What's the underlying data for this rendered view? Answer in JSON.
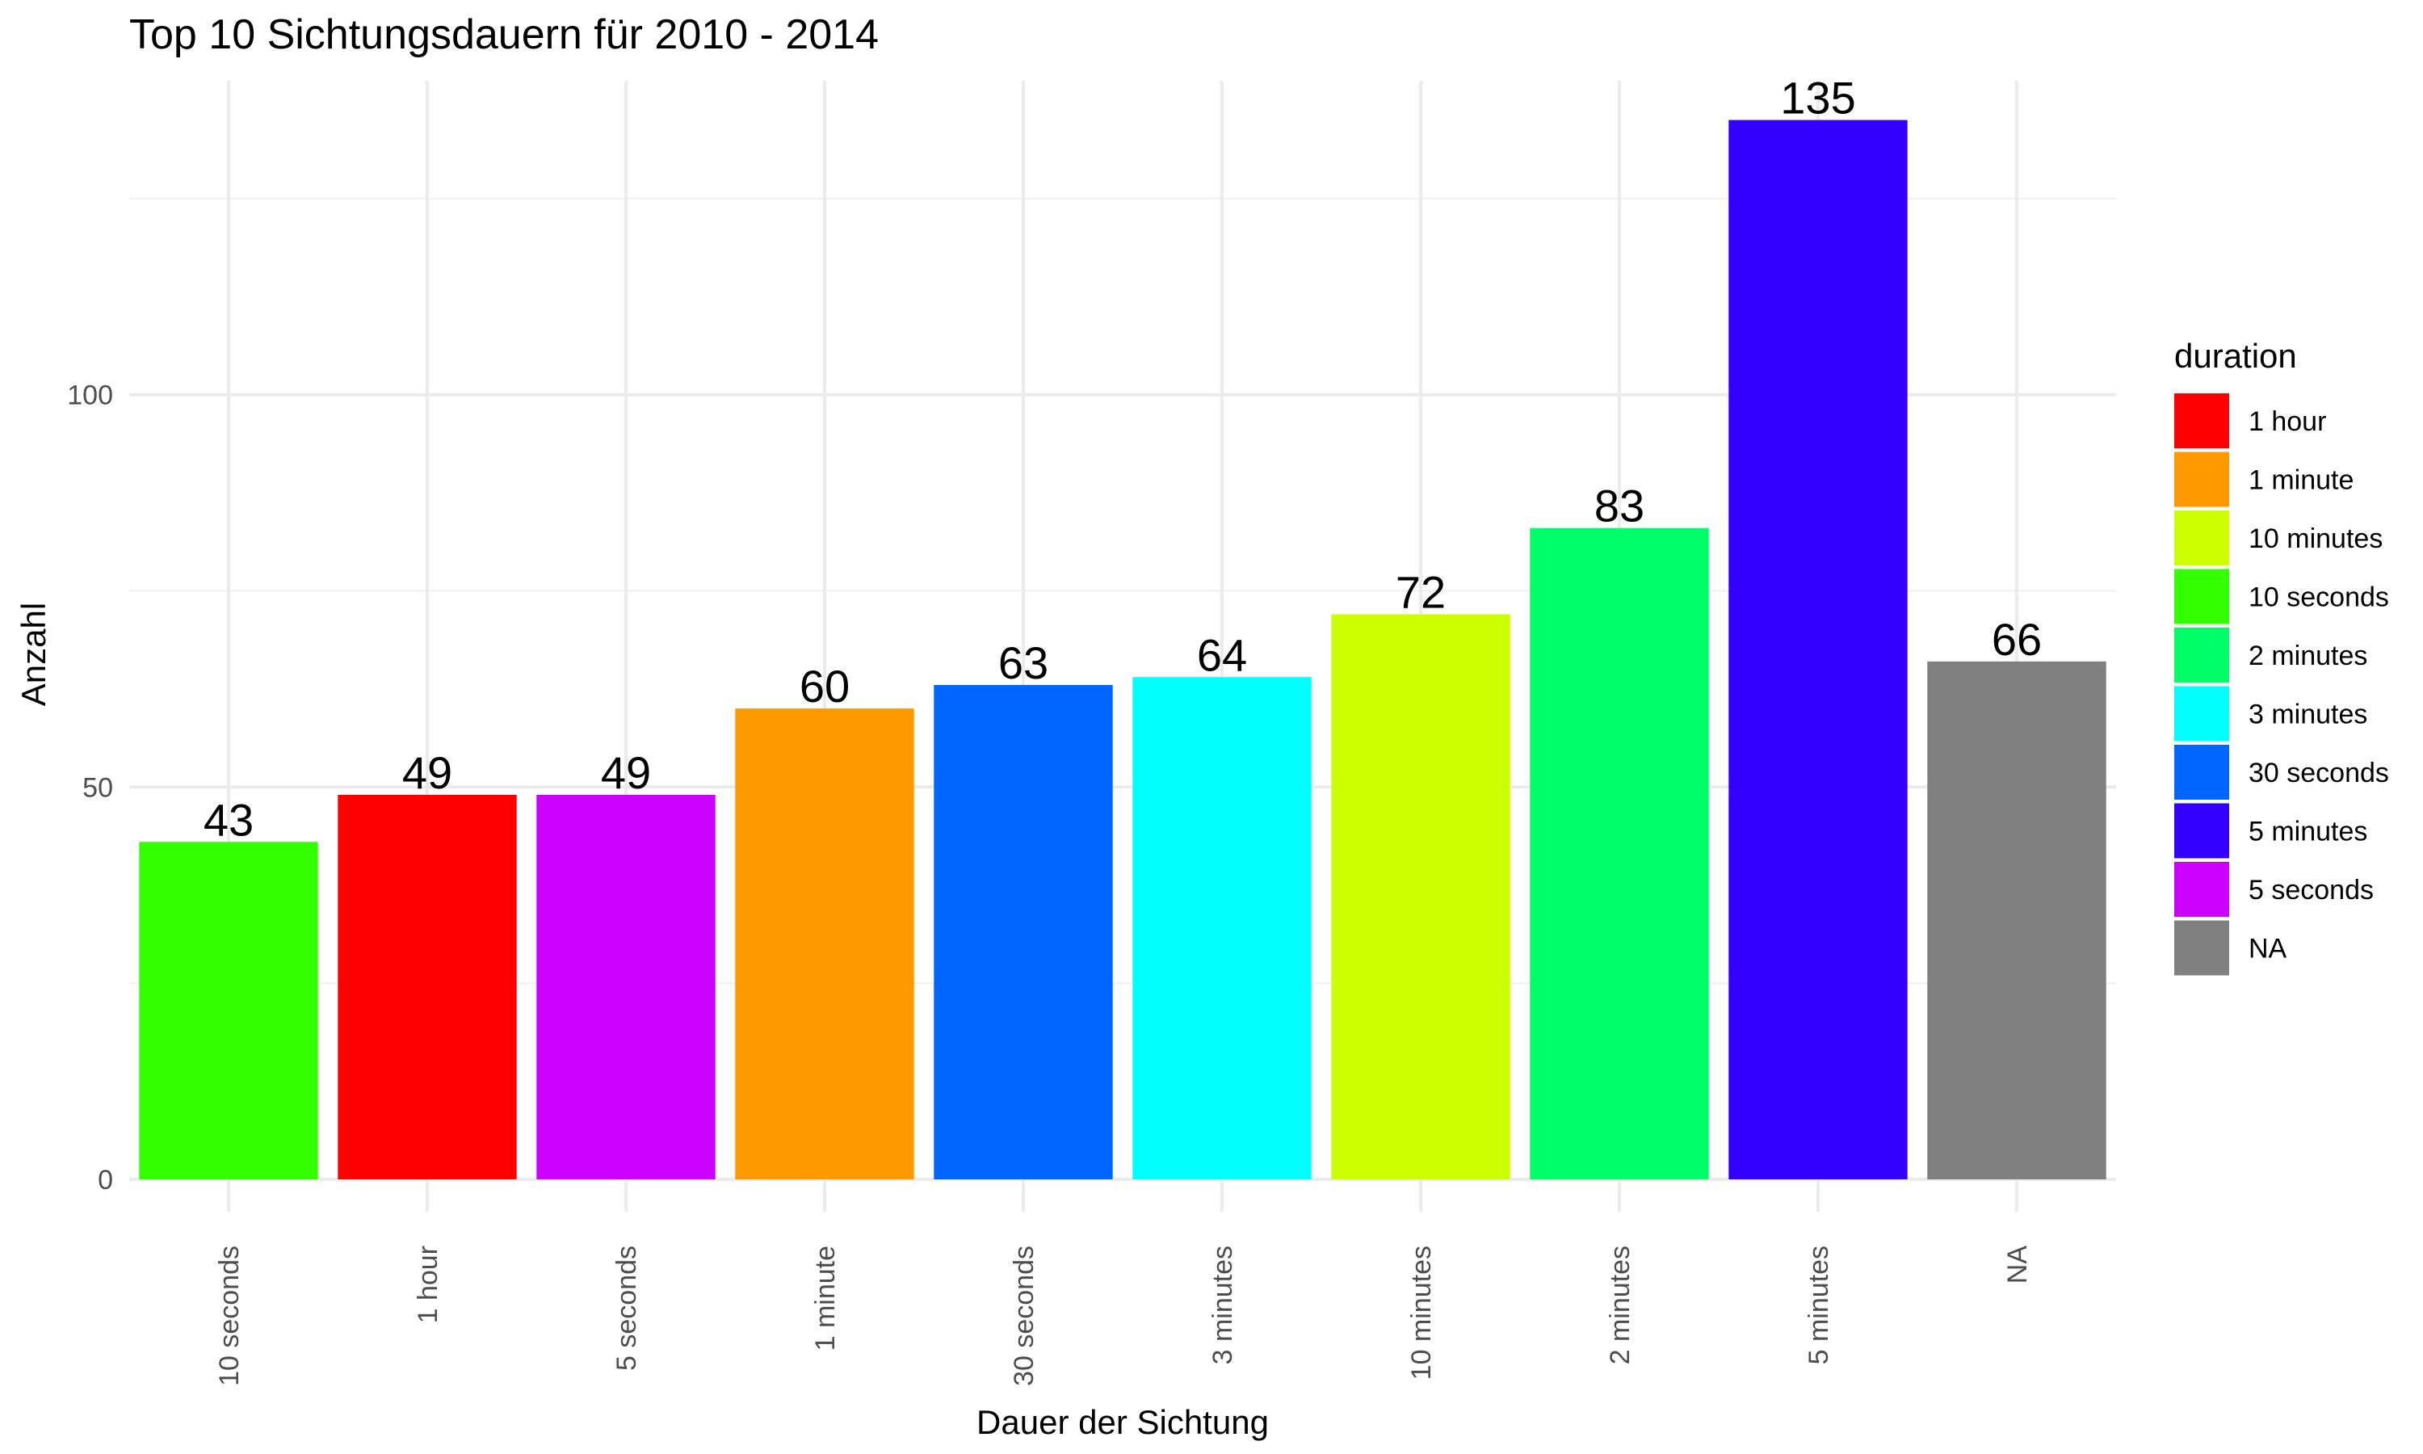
{
  "chart_data": {
    "type": "bar",
    "title": "Top 10 Sichtungsdauern für 2010 - 2014",
    "xlabel": "Dauer der Sichtung",
    "ylabel": "Anzahl",
    "categories": [
      "10 seconds",
      "1 hour",
      "5 seconds",
      "1 minute",
      "30 seconds",
      "3 minutes",
      "10 minutes",
      "2 minutes",
      "5 minutes",
      "NA"
    ],
    "values": [
      43,
      49,
      49,
      60,
      63,
      64,
      72,
      83,
      135,
      66
    ],
    "bar_colors": [
      "#33FF00",
      "#FF0000",
      "#CC00FF",
      "#FF9900",
      "#0066FF",
      "#00FFFF",
      "#CCFF00",
      "#00FF66",
      "#3300FF",
      "#808080"
    ],
    "ylim": [
      0,
      140
    ],
    "y_ticks": [
      0,
      50,
      100
    ],
    "grid": true,
    "legend": {
      "title": "duration",
      "position": "right",
      "items": [
        {
          "label": "1 hour",
          "color": "#FF0000"
        },
        {
          "label": "1 minute",
          "color": "#FF9900"
        },
        {
          "label": "10 minutes",
          "color": "#CCFF00"
        },
        {
          "label": "10 seconds",
          "color": "#33FF00"
        },
        {
          "label": "2 minutes",
          "color": "#00FF66"
        },
        {
          "label": "3 minutes",
          "color": "#00FFFF"
        },
        {
          "label": "30 seconds",
          "color": "#0066FF"
        },
        {
          "label": "5 minutes",
          "color": "#3300FF"
        },
        {
          "label": "5 seconds",
          "color": "#CC00FF"
        },
        {
          "label": "NA",
          "color": "#808080"
        }
      ]
    }
  }
}
